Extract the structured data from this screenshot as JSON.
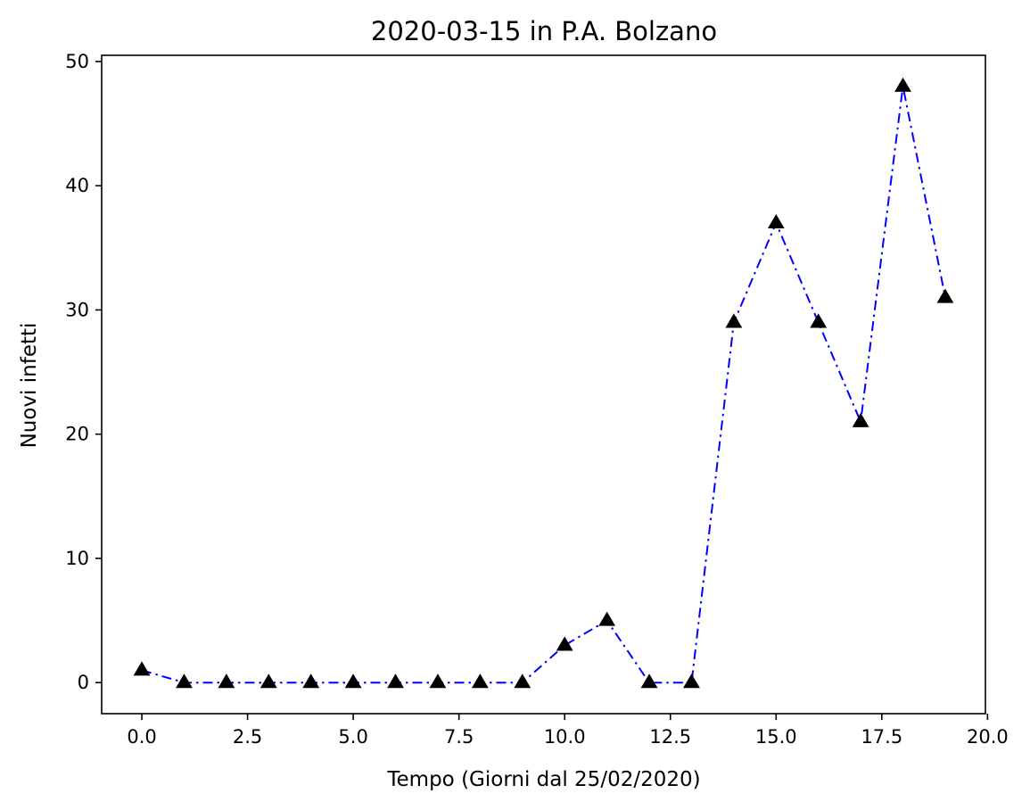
{
  "chart_data": {
    "type": "line",
    "title": "2020-03-15 in P.A. Bolzano",
    "xlabel": "Tempo (Giorni dal 25/02/2020)",
    "ylabel": "Nuovi infetti",
    "x": [
      0,
      1,
      2,
      3,
      4,
      5,
      6,
      7,
      8,
      9,
      10,
      11,
      12,
      13,
      14,
      15,
      16,
      17,
      18,
      19
    ],
    "series": [
      {
        "values": [
          1,
          0,
          0,
          0,
          0,
          0,
          0,
          0,
          0,
          0,
          3,
          5,
          0,
          0,
          29,
          37,
          29,
          21,
          48,
          31
        ],
        "line_color": "#0000ff",
        "line_style": "dash-dot",
        "marker": "triangle-up",
        "marker_color": "#000000"
      }
    ],
    "xlim": [
      -0.95,
      19.95
    ],
    "ylim": [
      -2.5,
      50.5
    ],
    "xticks": [
      "0.0",
      "2.5",
      "5.0",
      "7.5",
      "10.0",
      "12.5",
      "15.0",
      "17.5",
      "20.0"
    ],
    "xtick_values": [
      0,
      2.5,
      5,
      7.5,
      10,
      12.5,
      15,
      17.5,
      20
    ],
    "yticks": [
      "0",
      "10",
      "20",
      "30",
      "40",
      "50"
    ],
    "ytick_values": [
      0,
      10,
      20,
      30,
      40,
      50
    ],
    "grid": false,
    "legend": "none"
  }
}
